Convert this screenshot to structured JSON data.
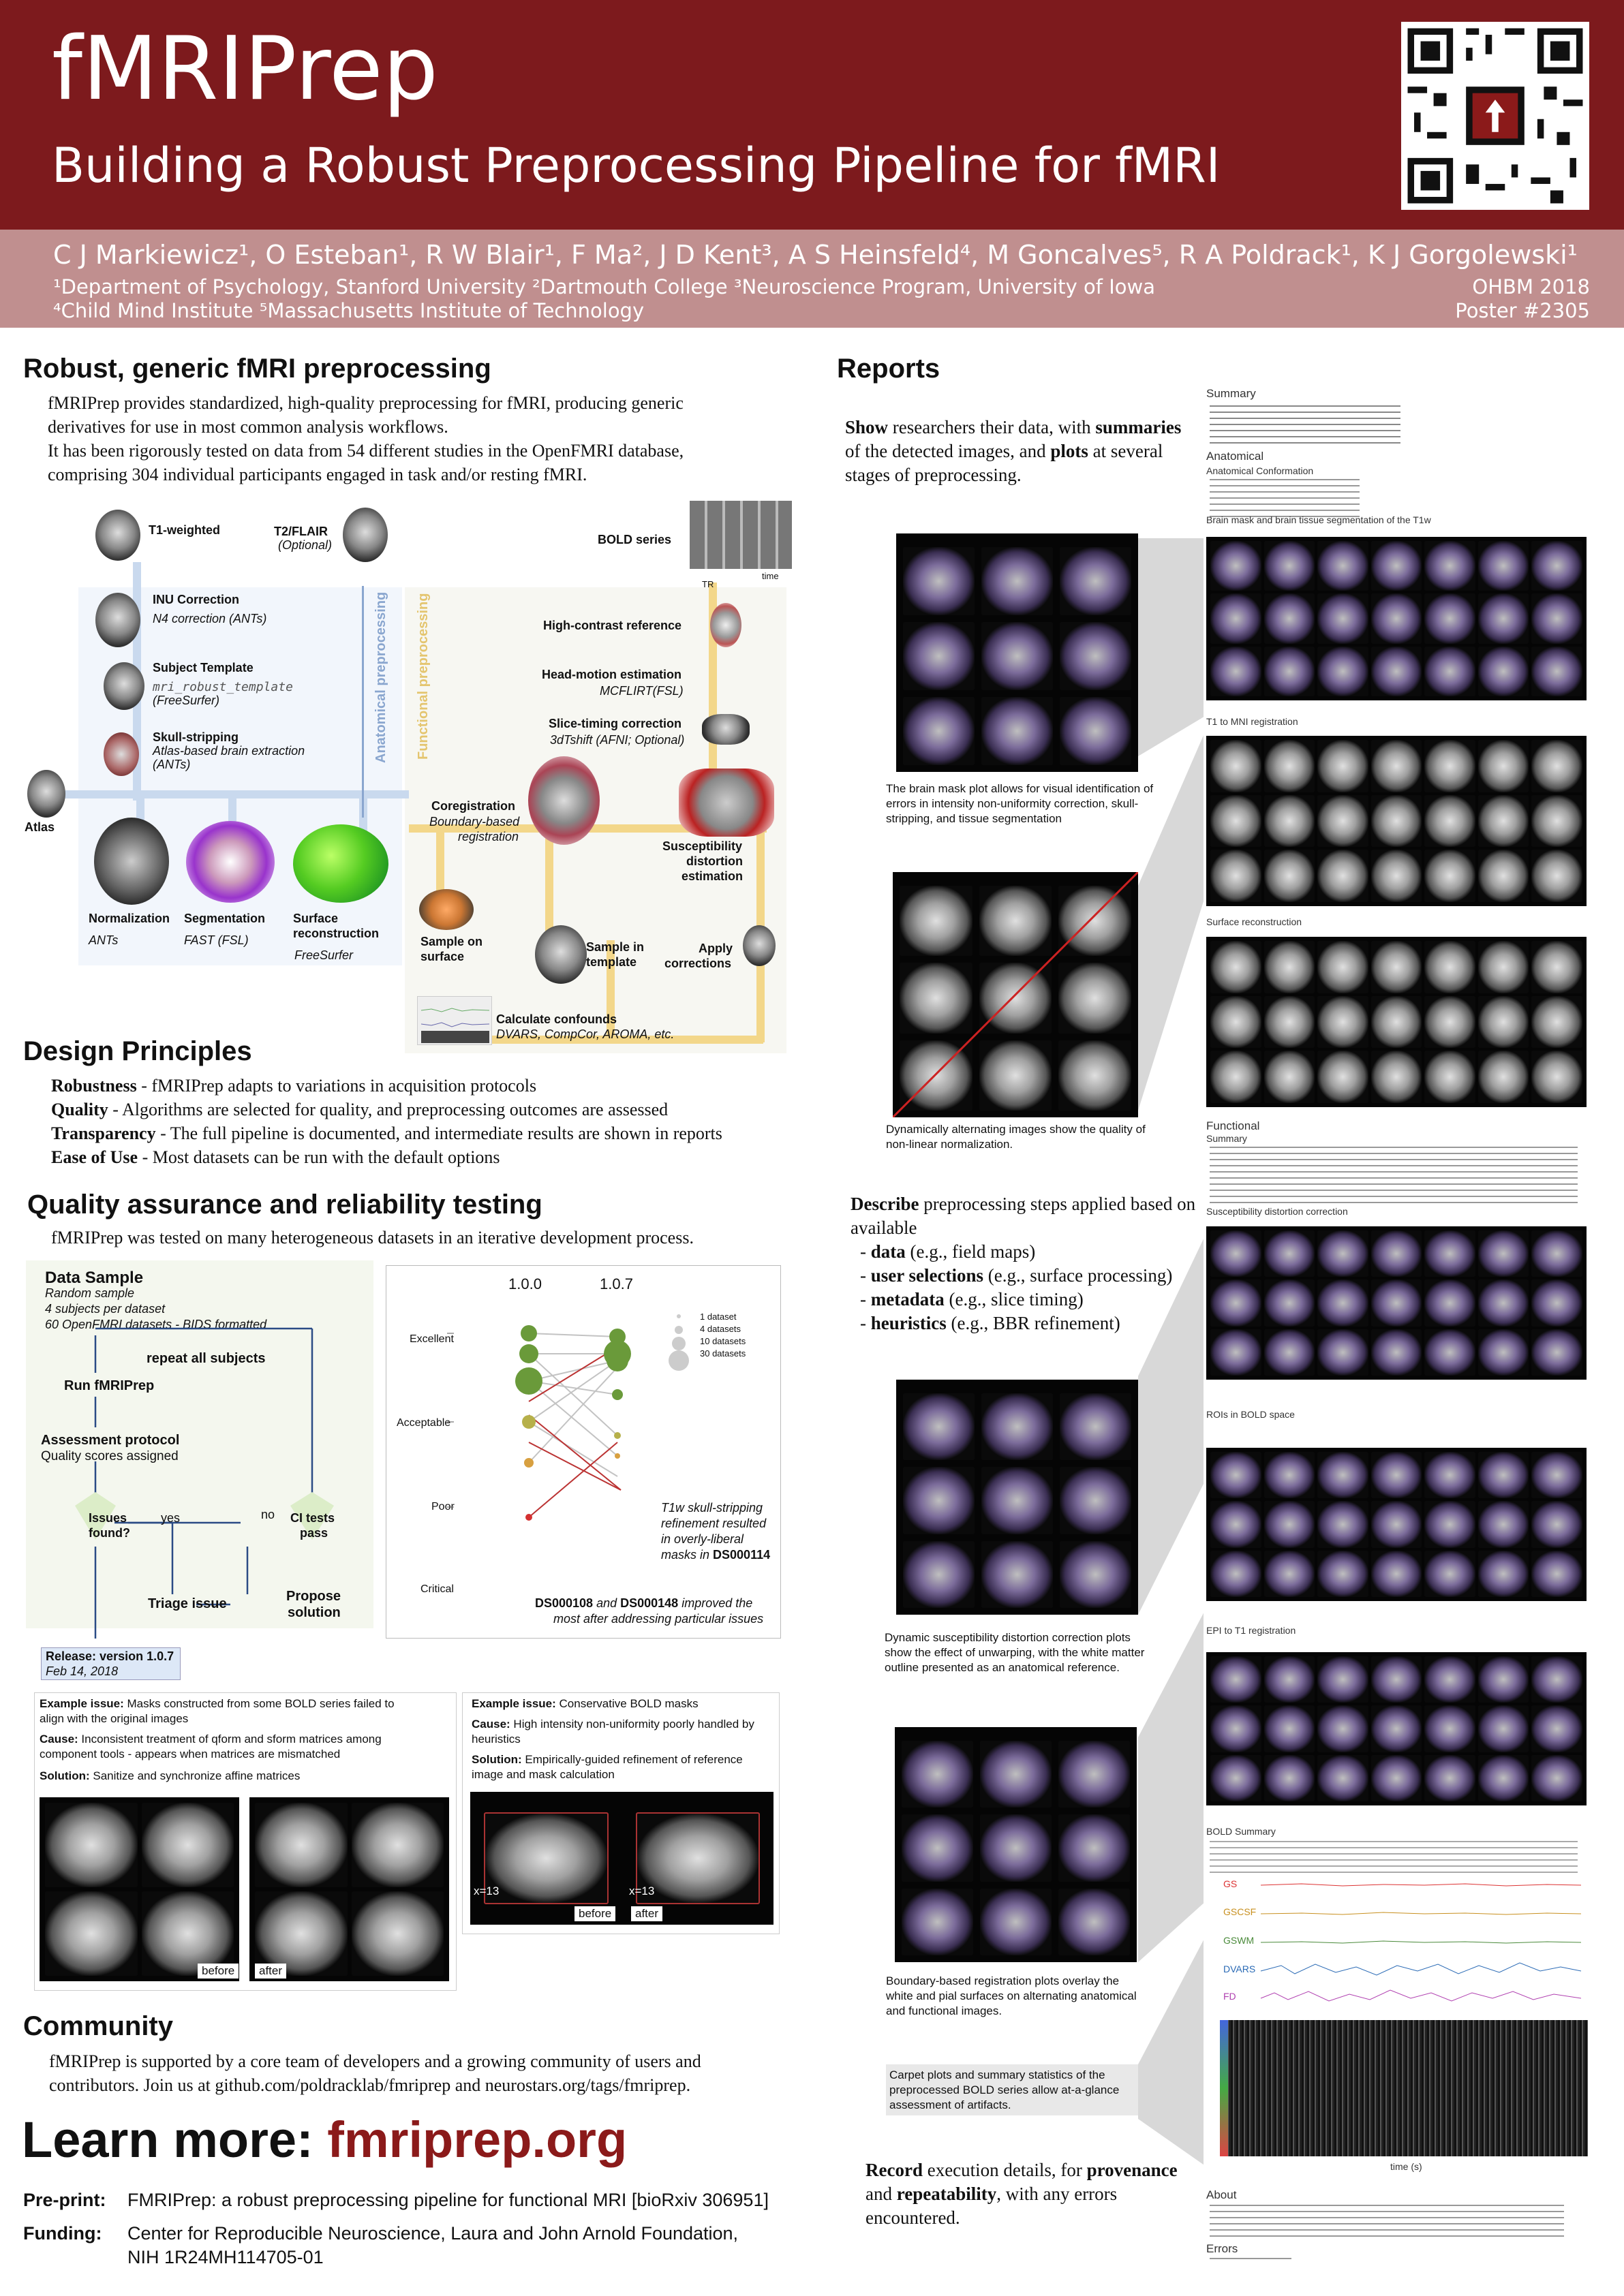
{
  "header": {
    "title": "fMRIPrep",
    "subtitle": "Building a Robust Preprocessing Pipeline for fMRI",
    "authors": "C J Markiewicz¹, O Esteban¹, R W Blair¹, F Ma², J D Kent³, A S Heinsfeld⁴, M Goncalves⁵, R A Poldrack¹, K J Gorgolewski¹",
    "affiliations1": "¹Department of Psychology, Stanford University  ²Dartmouth College  ³Neuroscience Program, University of Iowa",
    "affiliations2": "⁴Child Mind Institute  ⁵Massachusetts Institute of Technology",
    "conference": "OHBM 2018",
    "poster": "Poster #2305"
  },
  "colors": {
    "header": "#7d1a1d",
    "author_band": "#c08f8f",
    "accent": "#8b1a1a",
    "functional_line": "#f3d78a",
    "anatomical_line": "#c9d9ee"
  },
  "s1": {
    "title": "Robust, generic fMRI preprocessing",
    "p1": "fMRIPrep provides standardized, high-quality preprocessing for fMRI, producing generic derivatives for use in most common analysis workflows.",
    "p2": "It has been rigorously tested on data from 54 different studies in the OpenFMRI database, comprising 304 individual participants engaged in task and/or resting fMRI."
  },
  "pipeline": {
    "t1": "T1-weighted",
    "t2": "T2/FLAIR",
    "t2_opt": "(Optional)",
    "bold": "BOLD series",
    "tr": "TR",
    "time": "time",
    "inu": "INU Correction",
    "inu_tool": "N4 correction (ANTs)",
    "tmpl": "Subject Template",
    "tmpl_tool": "mri_robust_template",
    "tmpl_tool2": "(FreeSurfer)",
    "skull": "Skull-stripping",
    "skull_tool": "Atlas-based brain extraction",
    "skull_tool2": "(ANTs)",
    "anat": "Anatomical preprocessing",
    "func": "Functional preprocessing",
    "hcref": "High-contrast reference",
    "hmc": "Head-motion estimation",
    "hmc_tool": "MCFLIRT(FSL)",
    "stc": "Slice-timing correction",
    "stc_tool": "3dTshift (AFNI; Optional)",
    "atlas": "Atlas",
    "coreg": "Coregistration",
    "coreg_tool": "Boundary-based",
    "coreg_tool2": "registration",
    "sdc": "Susceptibility",
    "sdc2": "distortion",
    "sdc3": "estimation",
    "norm": "Normalization",
    "norm_tool": "ANTs",
    "seg": "Segmentation",
    "seg_tool": "FAST (FSL)",
    "surf": "Surface",
    "surf2": "reconstruction",
    "surf_tool": "FreeSurfer",
    "sos": "Sample on",
    "sos2": "surface",
    "sit": "Sample in",
    "sit2": "template",
    "apply": "Apply",
    "apply2": "corrections",
    "conf": "Calculate confounds",
    "conf_tool": "DVARS, CompCor, AROMA, etc."
  },
  "design": {
    "title": "Design Principles",
    "items": [
      {
        "term": "Robustness",
        "desc": " - fMRIPrep adapts to variations in acquisition protocols"
      },
      {
        "term": "Quality",
        "desc": " - Algorithms are selected for quality, and preprocessing outcomes are assessed"
      },
      {
        "term": "Transparency",
        "desc": " - The full pipeline is documented, and intermediate results are shown in reports"
      },
      {
        "term": "Ease of Use",
        "desc": " - Most datasets can be run with the default options"
      }
    ]
  },
  "qa": {
    "title": "Quality assurance and reliability testing",
    "intro": "fMRIPrep was tested on many heterogeneous datasets in an iterative development process.",
    "flow": {
      "sample": "Data Sample",
      "sample1": "Random sample",
      "sample2": "4 subjects per dataset",
      "sample3": "60 OpenFMRI datasets - BIDS formatted",
      "repeat": "repeat all subjects",
      "run": "Run fMRIPrep",
      "assess": "Assessment protocol",
      "assess2": "Quality scores assigned",
      "issues": "Issues",
      "issues2": "found?",
      "yes": "yes",
      "no": "no",
      "ci": "CI tests",
      "ci2": "pass",
      "triage": "Triage issue",
      "propose": "Propose",
      "propose2": "solution",
      "release": "Release: version 1.0.7",
      "release_date": "Feb 14, 2018"
    },
    "chart": {
      "v1": "1.0.0",
      "v2": "1.0.7",
      "levels": [
        "Excellent",
        "Acceptable",
        "Poor",
        "Critical"
      ],
      "legend": [
        "1 dataset",
        "4 datasets",
        "10 datasets",
        "30 datasets"
      ],
      "ann1a": "T1w skull-stripping",
      "ann1b": "refinement resulted",
      "ann1c": "in overly-liberal",
      "ann1d": "masks in ",
      "ann1e": "DS000114",
      "ann2a": "DS000108",
      "ann2b": " and ",
      "ann2c": "DS000148",
      "ann2d": " improved the",
      "ann2e": "most after addressing particular issues"
    },
    "ex1": {
      "label": "Example issue:",
      "text": " Masks constructed from some BOLD series failed to align with the original images",
      "cause": "Cause:",
      "cause_text": " Inconsistent treatment of qform and sform matrices among component tools - appears when matrices are mismatched",
      "sol": "Solution:",
      "sol_text": " Sanitize and synchronize affine matrices",
      "before": "before",
      "after": "after"
    },
    "ex2": {
      "label": "Example issue:",
      "text": " Conservative BOLD masks",
      "cause": "Cause:",
      "cause_text": " High intensity non-uniformity poorly handled by heuristics",
      "sol": "Solution:",
      "sol_text": " Empirically-guided refinement of reference image and mask calculation",
      "before": "before",
      "after": "after",
      "coord": "x=13"
    }
  },
  "community": {
    "title": "Community",
    "text": "fMRIPrep is supported by a core team of developers and a growing community of users and contributors. Join us at github.com/poldracklab/fmriprep and neurostars.org/tags/fmriprep."
  },
  "learn": {
    "prefix": "Learn more: ",
    "url": "fmriprep.org"
  },
  "footer": {
    "preprint_label": "Pre-print:",
    "preprint": "FMRIPrep: a robust preprocessing pipeline for functional MRI [bioRxiv 306951]",
    "funding_label": "Funding:",
    "funding1": "Center for Reproducible Neuroscience, Laura and John Arnold Foundation,",
    "funding2": "NIH 1R24MH114705-01"
  },
  "reports": {
    "title": "Reports",
    "show_a": "Show",
    "show_b": " researchers their data, with ",
    "show_c": "summaries",
    "show_d": " of the detected images, and ",
    "show_e": "plots",
    "show_f": " at several stages of preprocessing.",
    "cap1": "The brain mask plot allows for visual identification of errors in intensity non-uniformity correction, skull-stripping, and tissue segmentation",
    "cap2": "Dynamically alternating images show the quality of non-linear normalization.",
    "describe_a": "Describe",
    "describe_b": " preprocessing steps applied based on available",
    "list": [
      {
        "b": "data",
        "t": " (e.g., field maps)"
      },
      {
        "b": "user selections",
        "t": " (e.g., surface processing)"
      },
      {
        "b": "metadata",
        "t": " (e.g., slice timing)"
      },
      {
        "b": "heuristics",
        "t": " (e.g., BBR refinement)"
      }
    ],
    "cap3": "Dynamic susceptibility distortion correction plots show the effect of unwarping, with the white matter outline presented as an anatomical reference.",
    "cap4": "Boundary-based registration plots overlay the white and pial surfaces on alternating anatomical and functional images.",
    "cap5": "Carpet plots and summary statistics of the preprocessed BOLD series allow at-a-glance assessment of artifacts.",
    "record_a": "Record",
    "record_b": " execution details, for ",
    "record_c": "provenance",
    "record_d": " and ",
    "record_e": "repeatability",
    "record_f": ", with any errors encountered.",
    "rep": {
      "summary": "Summary",
      "anatomical": "Anatomical",
      "anat_conf": "Anatomical Conformation",
      "mask": "Brain mask and brain tissue segmentation of the T1w",
      "t1mni": "T1 to MNI registration",
      "surfrec": "Surface reconstruction",
      "functional": "Functional",
      "fsummary": "Summary",
      "sdc": "Susceptibility distortion correction",
      "rois": "ROIs in BOLD space",
      "epi": "EPI to T1 registration",
      "boldsum": "BOLD Summary",
      "about": "About",
      "errors": "Errors",
      "gs": "GS",
      "gscsf": "GSCSF",
      "gswm": "GSWM",
      "dvars": "DVARS",
      "fd": "FD",
      "times": "time (s)"
    }
  }
}
